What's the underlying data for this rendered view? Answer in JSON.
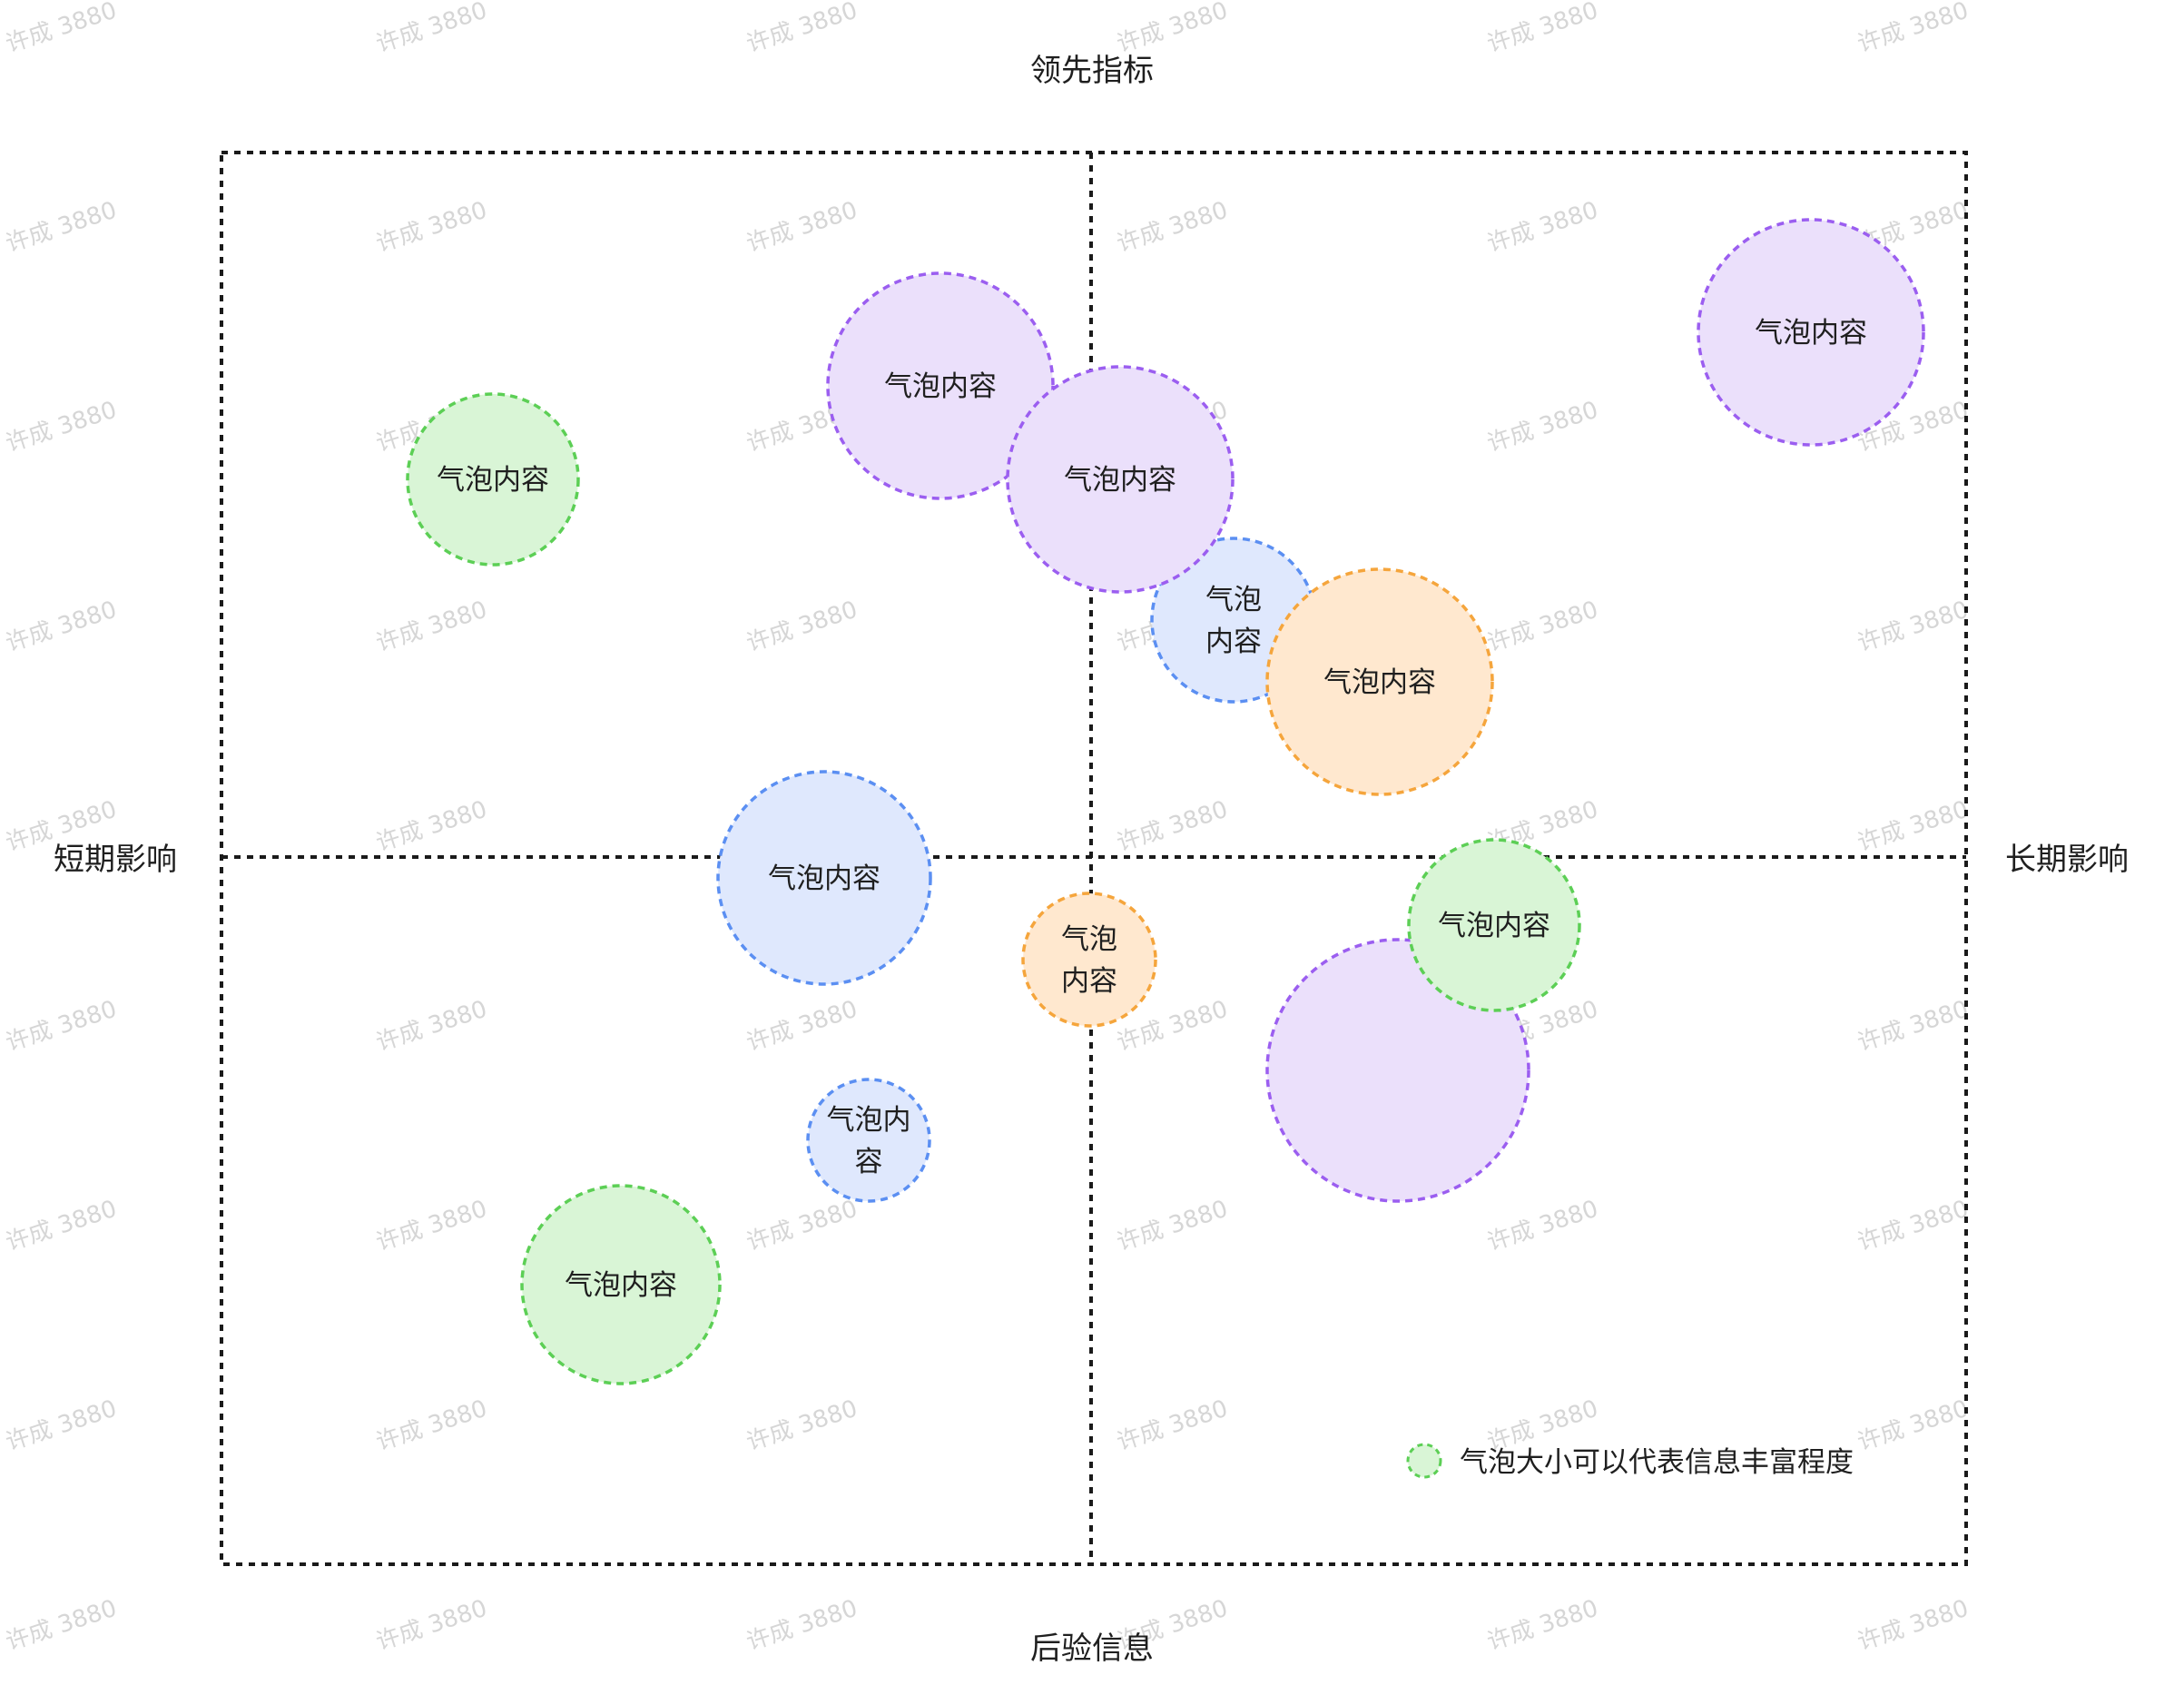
{
  "axis_labels": {
    "top": "领先指标",
    "bottom": "后验信息",
    "left": "短期影响",
    "right": "长期影响"
  },
  "watermark_text": "许成 3880",
  "legend": {
    "text": "气泡大小可以代表信息丰富程度",
    "color": "green"
  },
  "colors": {
    "purple": {
      "fill": "#ebe0fb",
      "stroke": "#9b5ef0"
    },
    "green": {
      "fill": "#d9f5d6",
      "stroke": "#5ccf55"
    },
    "blue": {
      "fill": "#dfe8fd",
      "stroke": "#5b8ff2"
    },
    "orange": {
      "fill": "#ffe8cf",
      "stroke": "#f5a53c"
    },
    "grid": "#1a1a1a"
  },
  "bubbles": [
    {
      "lines": [
        "气泡内容"
      ],
      "color": "green"
    },
    {
      "lines": [
        "气泡内容"
      ],
      "color": "purple"
    },
    {
      "lines": [
        "气泡内容"
      ],
      "color": "purple"
    },
    {
      "lines": [
        "气泡",
        "内容"
      ],
      "color": "blue"
    },
    {
      "lines": [
        "气泡内容"
      ],
      "color": "orange"
    },
    {
      "lines": [
        "气泡内容"
      ],
      "color": "purple"
    },
    {
      "lines": [
        "气泡内容"
      ],
      "color": "blue"
    },
    {
      "lines": [
        "气泡",
        "内容"
      ],
      "color": "orange"
    },
    {
      "lines": [],
      "color": "purple"
    },
    {
      "lines": [
        "气泡内容"
      ],
      "color": "green"
    },
    {
      "lines": [
        "气泡内",
        "容"
      ],
      "color": "blue"
    },
    {
      "lines": [
        "气泡内容"
      ],
      "color": "green"
    }
  ]
}
